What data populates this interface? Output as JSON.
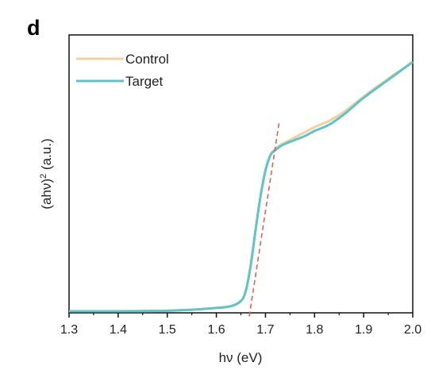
{
  "panel_label": "d",
  "chart_data": {
    "type": "line",
    "xlabel": "hν (eV)",
    "ylabel": "(ahν)² (a.u.)",
    "xlim": [
      1.3,
      2.0
    ],
    "ylim": [
      0,
      1
    ],
    "xticks": [
      "1.3",
      "1.4",
      "1.5",
      "1.6",
      "1.7",
      "1.8",
      "1.9",
      "2.0"
    ],
    "yticks_shown": false,
    "legend_position": "top-left",
    "series": [
      {
        "name": "Control",
        "color": "#f5cf9f",
        "x": [
          1.3,
          1.4,
          1.5,
          1.55,
          1.6,
          1.63,
          1.65,
          1.66,
          1.67,
          1.68,
          1.69,
          1.7,
          1.71,
          1.72,
          1.73,
          1.74,
          1.76,
          1.78,
          1.8,
          1.83,
          1.86,
          1.9,
          1.95,
          2.0
        ],
        "y": [
          0.0,
          0.0,
          0.002,
          0.006,
          0.013,
          0.02,
          0.04,
          0.08,
          0.18,
          0.32,
          0.45,
          0.55,
          0.61,
          0.635,
          0.65,
          0.66,
          0.68,
          0.7,
          0.72,
          0.745,
          0.78,
          0.84,
          0.91,
          0.975
        ]
      },
      {
        "name": "Target",
        "color": "#5fc4c6",
        "x": [
          1.3,
          1.4,
          1.5,
          1.55,
          1.6,
          1.63,
          1.65,
          1.66,
          1.67,
          1.68,
          1.69,
          1.7,
          1.71,
          1.72,
          1.73,
          1.74,
          1.76,
          1.78,
          1.8,
          1.83,
          1.86,
          1.9,
          1.95,
          2.0
        ],
        "y": [
          0.0,
          0.0,
          0.002,
          0.006,
          0.013,
          0.02,
          0.04,
          0.08,
          0.18,
          0.32,
          0.45,
          0.55,
          0.61,
          0.63,
          0.645,
          0.655,
          0.67,
          0.685,
          0.705,
          0.73,
          0.77,
          0.835,
          0.905,
          0.975
        ]
      }
    ],
    "fit_line": {
      "style": "dashed",
      "color": "#e8604c",
      "x": [
        1.667,
        1.728
      ],
      "y": [
        -0.02,
        0.74
      ]
    }
  }
}
